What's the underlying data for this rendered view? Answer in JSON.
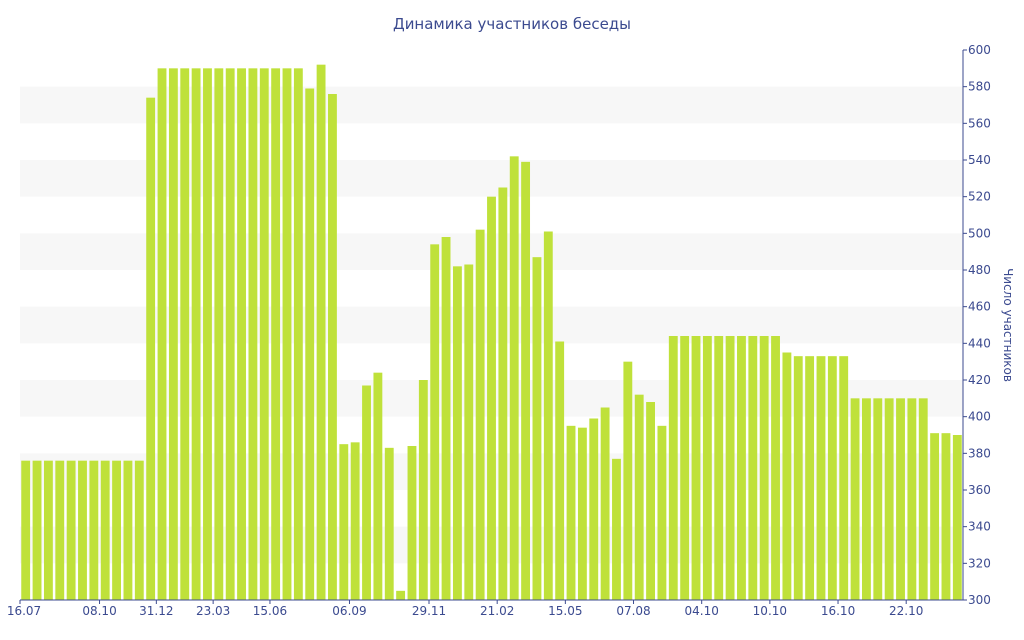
{
  "chart_data": {
    "type": "bar",
    "title": "Динамика участников беседы",
    "xlabel": "",
    "ylabel": "Число участников",
    "ylim": [
      300,
      600
    ],
    "y_ticks": [
      300,
      320,
      340,
      360,
      380,
      400,
      420,
      440,
      460,
      480,
      500,
      520,
      540,
      560,
      580,
      600
    ],
    "x_tick_labels": [
      "16.07",
      "08.10",
      "31.12",
      "23.03",
      "15.06",
      "06.09",
      "29.11",
      "21.02",
      "15.05",
      "07.08",
      "04.10",
      "10.10",
      "16.10",
      "22.10"
    ],
    "x_tick_bar_index": [
      0,
      7,
      12,
      17,
      22,
      29,
      36,
      42,
      48,
      54,
      60,
      66,
      72,
      78
    ],
    "bar_color": "#bfe13a",
    "band_color": "#f7f7f7",
    "axis_color": "#3b4a8f",
    "values": [
      376,
      376,
      376,
      376,
      376,
      376,
      376,
      376,
      376,
      376,
      376,
      574,
      590,
      590,
      590,
      590,
      590,
      590,
      590,
      590,
      590,
      590,
      590,
      590,
      590,
      579,
      592,
      576,
      385,
      386,
      417,
      424,
      383,
      305,
      384,
      420,
      494,
      498,
      482,
      483,
      502,
      520,
      525,
      542,
      539,
      487,
      501,
      441,
      395,
      394,
      399,
      405,
      377,
      430,
      412,
      408,
      395,
      444,
      444,
      444,
      444,
      444,
      444,
      444,
      444,
      444,
      444,
      435,
      433,
      433,
      433,
      433,
      433,
      410,
      410,
      410,
      410,
      410,
      410,
      410,
      391,
      391,
      390
    ]
  }
}
